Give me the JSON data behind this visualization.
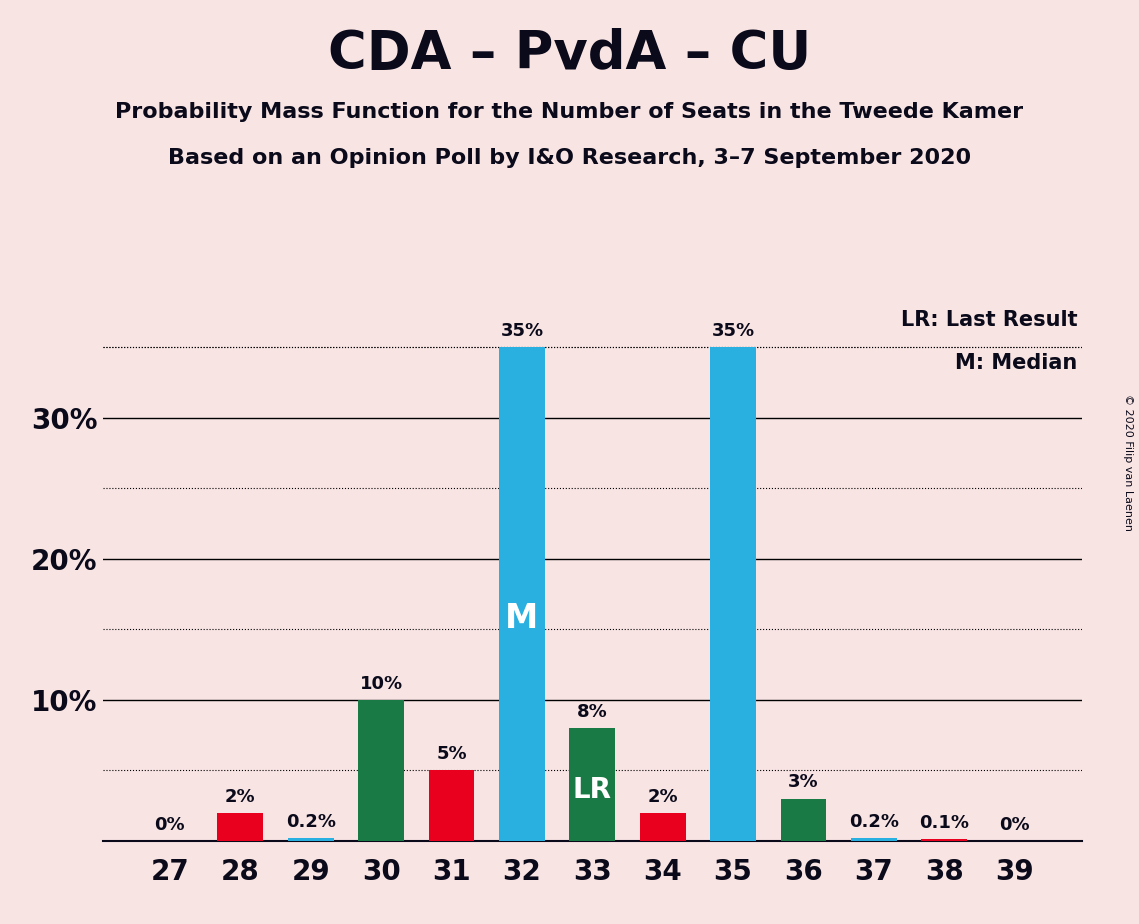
{
  "title": "CDA – PvdA – CU",
  "subtitle1": "Probability Mass Function for the Number of Seats in the Tweede Kamer",
  "subtitle2": "Based on an Opinion Poll by I&O Research, 3–7 September 2020",
  "copyright": "© 2020 Filip van Laenen",
  "categories": [
    27,
    28,
    29,
    30,
    31,
    32,
    33,
    34,
    35,
    36,
    37,
    38,
    39
  ],
  "values": [
    0.0,
    2.0,
    0.2,
    10.0,
    5.0,
    35.0,
    8.0,
    2.0,
    35.0,
    3.0,
    0.2,
    0.1,
    0.0
  ],
  "bar_colors": [
    "#29b0e0",
    "#e8001e",
    "#29b0e0",
    "#1a7a45",
    "#e8001e",
    "#29b0e0",
    "#1a7a45",
    "#e8001e",
    "#29b0e0",
    "#1a7a45",
    "#29b0e0",
    "#e8001e",
    "#29b0e0"
  ],
  "labels": [
    "0%",
    "2%",
    "0.2%",
    "10%",
    "5%",
    "35%",
    "8%",
    "2%",
    "35%",
    "3%",
    "0.2%",
    "0.1%",
    "0%"
  ],
  "median_seat": 32,
  "lr_seat": 33,
  "median_label": "M",
  "lr_label": "LR",
  "legend_lr": "LR: Last Result",
  "legend_m": "M: Median",
  "background_color": "#f9e4e4",
  "ylim": [
    0,
    38
  ],
  "major_yticks": [
    10,
    20,
    30
  ],
  "major_ytick_labels": [
    "10%",
    "20%",
    "30%"
  ],
  "dotted_yticks": [
    5,
    15,
    25,
    35
  ],
  "solid_yticks": [
    10,
    20,
    30
  ]
}
